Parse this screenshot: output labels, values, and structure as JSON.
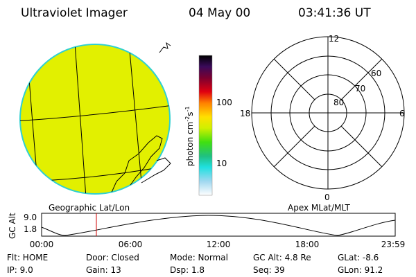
{
  "header": {
    "title": "Ultraviolet Imager",
    "date": "04 May 00",
    "time": "03:41:36 UT"
  },
  "colorbar": {
    "ticks": [
      "100",
      "10"
    ],
    "unit": [
      "photon cm",
      "-2",
      "s",
      "-1"
    ]
  },
  "polar": {
    "rings": [
      "80",
      "70",
      "60"
    ],
    "hours": {
      "top": "12",
      "left": "18",
      "right": "6",
      "bottom": "0"
    }
  },
  "panel_labels": {
    "left": "Geographic Lat/Lon",
    "right": "Apex MLat/MLT"
  },
  "altitude_plot": {
    "axis_label": "GC Alt",
    "yticks": [
      "9.0",
      "1.8"
    ],
    "xticks": [
      "00:00",
      "06:00",
      "12:00",
      "18:00",
      "23:59"
    ]
  },
  "status": [
    [
      "Flt: HOME",
      "Door: Closed",
      "Mode: Normal",
      "GC Alt: 4.8 Re",
      "GLat: -8.6"
    ],
    [
      "IP: 9.0",
      "Gain: 13",
      "Dsp: 1.8",
      "Seq: 39",
      "GLon: 91.2"
    ]
  ]
}
